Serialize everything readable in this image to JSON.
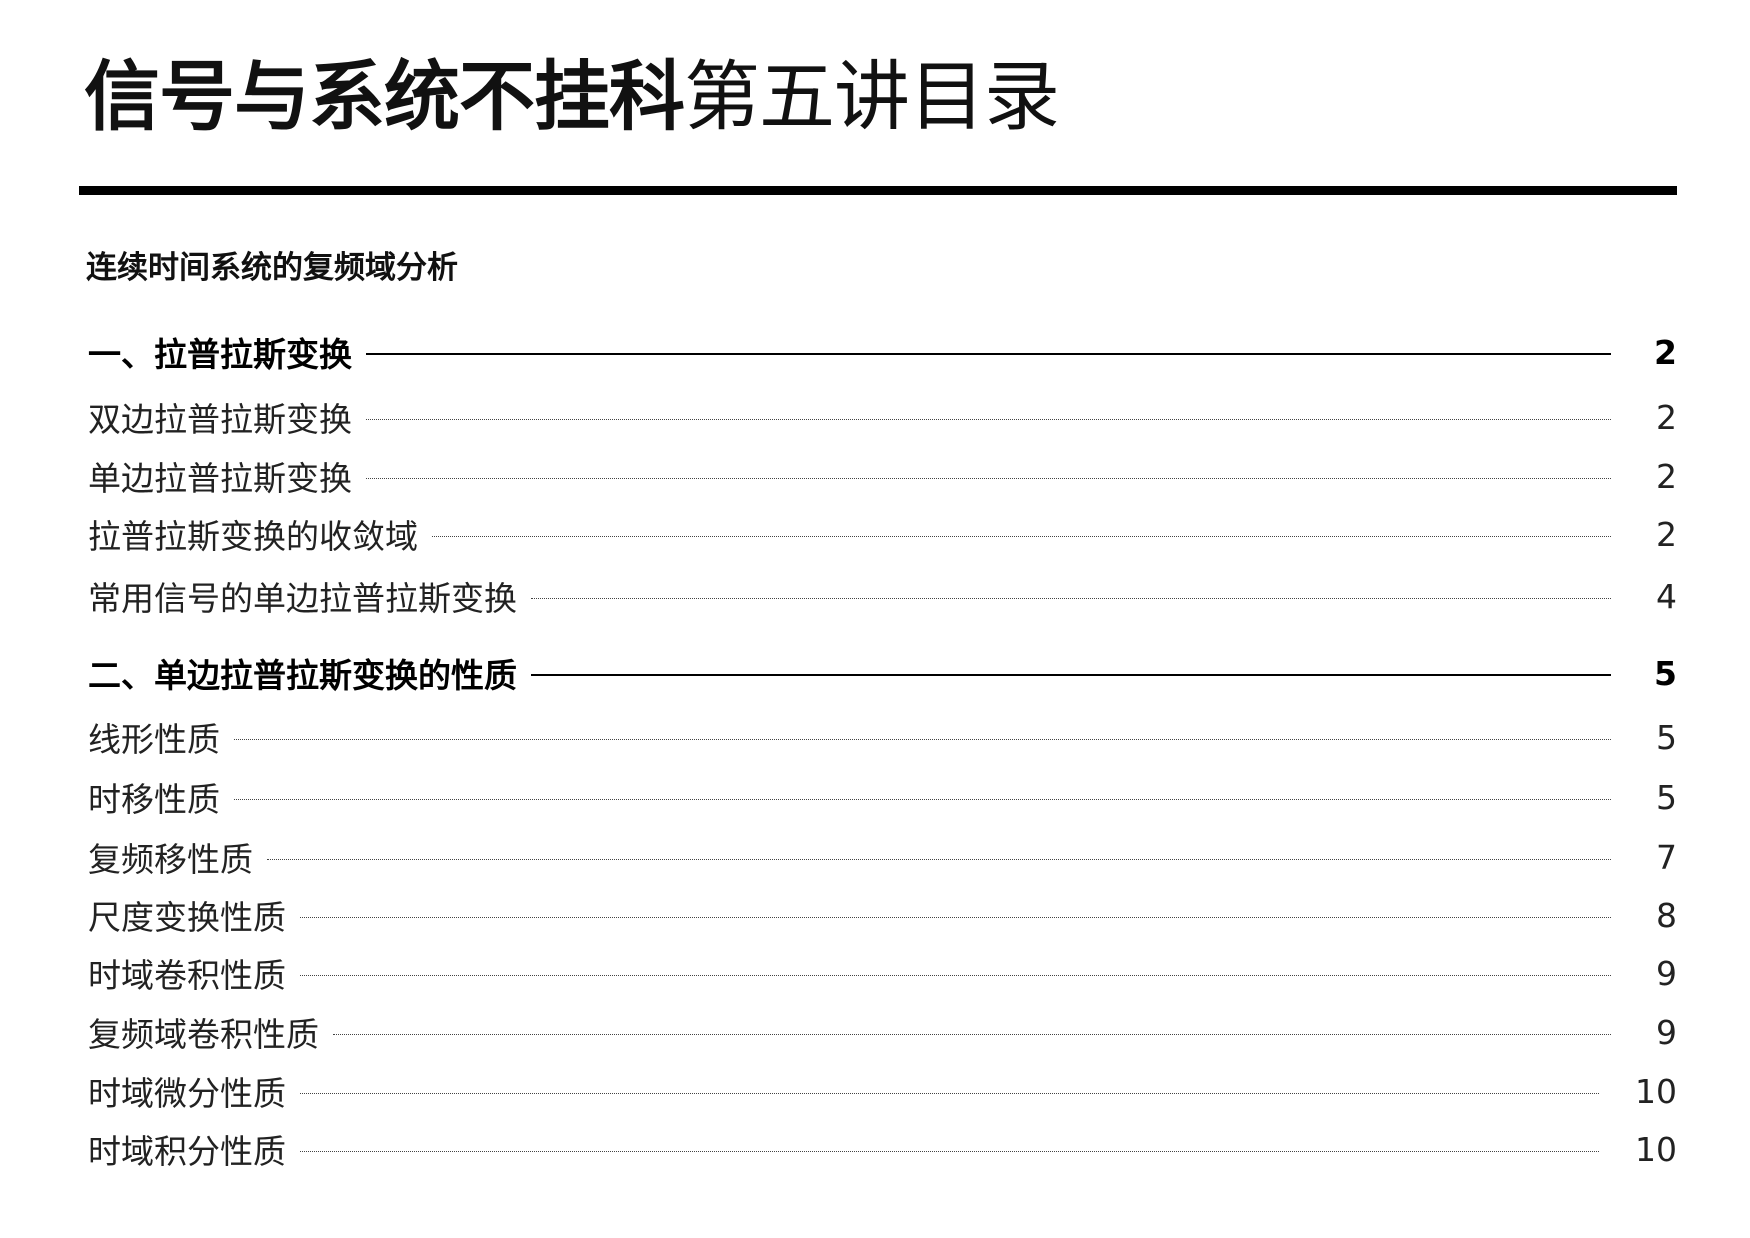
{
  "header": {
    "title_bold": "信号与系统不挂科",
    "title_light": "第五讲目录"
  },
  "subtitle": "连续时间系统的复频域分析",
  "toc": [
    {
      "label": "一、拉普拉斯变换",
      "page": "2",
      "major": true
    },
    {
      "label": "双边拉普拉斯变换",
      "page": "2"
    },
    {
      "label": "单边拉普拉斯变换",
      "page": "2"
    },
    {
      "label": "拉普拉斯变换的收敛域",
      "page": "2"
    },
    {
      "label": "常用信号的单边拉普拉斯变换",
      "page": "4"
    },
    {
      "label": "二、单边拉普拉斯变换的性质",
      "page": "5",
      "major": true
    },
    {
      "label": "线形性质",
      "page": "5"
    },
    {
      "label": "时移性质",
      "page": "5"
    },
    {
      "label": "复频移性质",
      "page": "7"
    },
    {
      "label": "尺度变换性质",
      "page": "8"
    },
    {
      "label": "时域卷积性质",
      "page": "9"
    },
    {
      "label": "复频域卷积性质",
      "page": "9"
    },
    {
      "label": "时域微分性质",
      "page": "10"
    },
    {
      "label": "时域积分性质",
      "page": "10"
    }
  ]
}
